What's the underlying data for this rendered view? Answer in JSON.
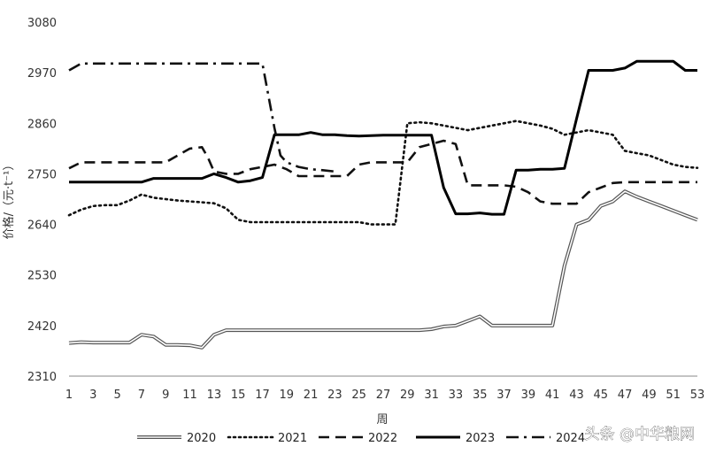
{
  "chart_data": {
    "type": "line",
    "title": "",
    "xlabel": "周",
    "ylabel": "价格/（元·t⁻¹）",
    "xlim": [
      1,
      53
    ],
    "ylim": [
      2310,
      3080
    ],
    "yticks": [
      2310,
      2420,
      2530,
      2640,
      2750,
      2860,
      2970,
      3080
    ],
    "xticks": [
      1,
      3,
      5,
      7,
      9,
      11,
      13,
      15,
      17,
      19,
      21,
      23,
      25,
      27,
      29,
      31,
      33,
      35,
      37,
      39,
      41,
      43,
      45,
      47,
      49,
      51,
      53
    ],
    "grid": false,
    "legend_position": "bottom",
    "series": [
      {
        "name": "2020",
        "style": "double",
        "color": "#555555",
        "x": [
          1,
          2,
          3,
          4,
          5,
          6,
          7,
          8,
          9,
          10,
          11,
          12,
          13,
          14,
          15,
          16,
          17,
          18,
          19,
          20,
          21,
          22,
          23,
          24,
          25,
          26,
          27,
          28,
          29,
          30,
          31,
          32,
          33,
          34,
          35,
          36,
          37,
          38,
          39,
          40,
          41,
          42,
          43,
          44,
          45,
          46,
          47,
          48,
          49,
          50,
          51,
          52,
          53
        ],
        "values": [
          2382,
          2384,
          2383,
          2383,
          2383,
          2383,
          2400,
          2396,
          2378,
          2378,
          2377,
          2372,
          2400,
          2410,
          2410,
          2410,
          2410,
          2410,
          2410,
          2410,
          2410,
          2410,
          2410,
          2410,
          2410,
          2410,
          2410,
          2410,
          2410,
          2410,
          2412,
          2418,
          2420,
          2430,
          2440,
          2420,
          2420,
          2420,
          2420,
          2420,
          2420,
          2550,
          2640,
          2650,
          2680,
          2690,
          2712,
          2700,
          2690,
          2680,
          2670,
          2660,
          2650
        ]
      },
      {
        "name": "2021",
        "style": "dotted",
        "color": "#111111",
        "x": [
          1,
          2,
          3,
          4,
          5,
          6,
          7,
          8,
          9,
          10,
          11,
          12,
          13,
          14,
          15,
          16,
          17,
          18,
          19,
          20,
          21,
          22,
          23,
          24,
          25,
          26,
          27,
          28,
          29,
          30,
          31,
          32,
          33,
          34,
          35,
          36,
          37,
          38,
          39,
          40,
          41,
          42,
          43,
          44,
          45,
          46,
          47,
          48,
          49,
          50,
          51,
          52,
          53
        ],
        "values": [
          2660,
          2672,
          2680,
          2682,
          2682,
          2692,
          2705,
          2698,
          2695,
          2692,
          2690,
          2688,
          2686,
          2675,
          2650,
          2645,
          2645,
          2645,
          2645,
          2645,
          2645,
          2645,
          2645,
          2645,
          2645,
          2640,
          2640,
          2640,
          2860,
          2862,
          2860,
          2855,
          2850,
          2845,
          2850,
          2855,
          2860,
          2865,
          2860,
          2855,
          2848,
          2835,
          2840,
          2845,
          2840,
          2835,
          2800,
          2795,
          2790,
          2780,
          2770,
          2765,
          2763
        ]
      },
      {
        "name": "2022",
        "style": "dashed",
        "color": "#111111",
        "x": [
          1,
          2,
          3,
          4,
          5,
          6,
          7,
          8,
          9,
          10,
          11,
          12,
          12.5,
          13,
          14,
          15,
          16,
          17,
          18,
          19,
          20,
          21,
          22,
          23,
          24,
          25,
          26,
          27,
          28,
          29,
          30,
          31,
          32,
          33,
          34,
          35,
          36,
          37,
          38,
          39,
          40,
          41,
          42,
          43,
          44,
          45,
          46,
          47,
          48,
          49,
          50,
          51,
          52,
          53
        ],
        "values": [
          2762,
          2775,
          2775,
          2775,
          2775,
          2775,
          2775,
          2775,
          2775,
          2790,
          2805,
          2808,
          2785,
          2755,
          2750,
          2750,
          2760,
          2765,
          2770,
          2760,
          2745,
          2745,
          2745,
          2745,
          2745,
          2770,
          2775,
          2775,
          2775,
          2775,
          2808,
          2815,
          2822,
          2815,
          2725,
          2725,
          2725,
          2725,
          2722,
          2710,
          2690,
          2685,
          2685,
          2685,
          2710,
          2720,
          2730,
          2732,
          2732,
          2732,
          2732,
          2732,
          2732,
          2732
        ]
      },
      {
        "name": "2023",
        "style": "solid",
        "color": "#000000",
        "x": [
          1,
          2,
          3,
          4,
          5,
          6,
          7,
          8,
          9,
          10,
          11,
          12,
          13,
          14,
          15,
          16,
          17,
          18,
          19,
          20,
          21,
          22,
          23,
          24,
          25,
          26,
          27,
          28,
          29,
          30,
          31,
          32,
          33,
          34,
          35,
          36,
          37,
          38,
          39,
          40,
          41,
          42,
          43,
          44,
          45,
          46,
          47,
          48,
          49,
          50,
          51,
          52,
          53
        ],
        "values": [
          2732,
          2732,
          2732,
          2732,
          2732,
          2732,
          2732,
          2740,
          2740,
          2740,
          2740,
          2740,
          2750,
          2742,
          2732,
          2735,
          2742,
          2835,
          2835,
          2835,
          2840,
          2835,
          2835,
          2833,
          2832,
          2833,
          2834,
          2834,
          2834,
          2834,
          2834,
          2720,
          2663,
          2663,
          2665,
          2662,
          2662,
          2758,
          2758,
          2760,
          2760,
          2762,
          2870,
          2975,
          2975,
          2975,
          2980,
          2995,
          2995,
          2995,
          2995,
          2975,
          2975
        ]
      },
      {
        "name": "2024",
        "style": "dashdot",
        "color": "#111111",
        "x": [
          1,
          2,
          3,
          4,
          5,
          6,
          7,
          8,
          9,
          10,
          11,
          12,
          13,
          14,
          15,
          16,
          17,
          17.5,
          18,
          18.5,
          19,
          20,
          21,
          22,
          23
        ],
        "values": [
          2975,
          2990,
          2990,
          2990,
          2990,
          2990,
          2990,
          2990,
          2990,
          2990,
          2990,
          2990,
          2990,
          2990,
          2990,
          2990,
          2990,
          2920,
          2850,
          2790,
          2775,
          2765,
          2760,
          2758,
          2755
        ]
      }
    ]
  },
  "watermark": {
    "text": "头条 @中华粮网"
  }
}
